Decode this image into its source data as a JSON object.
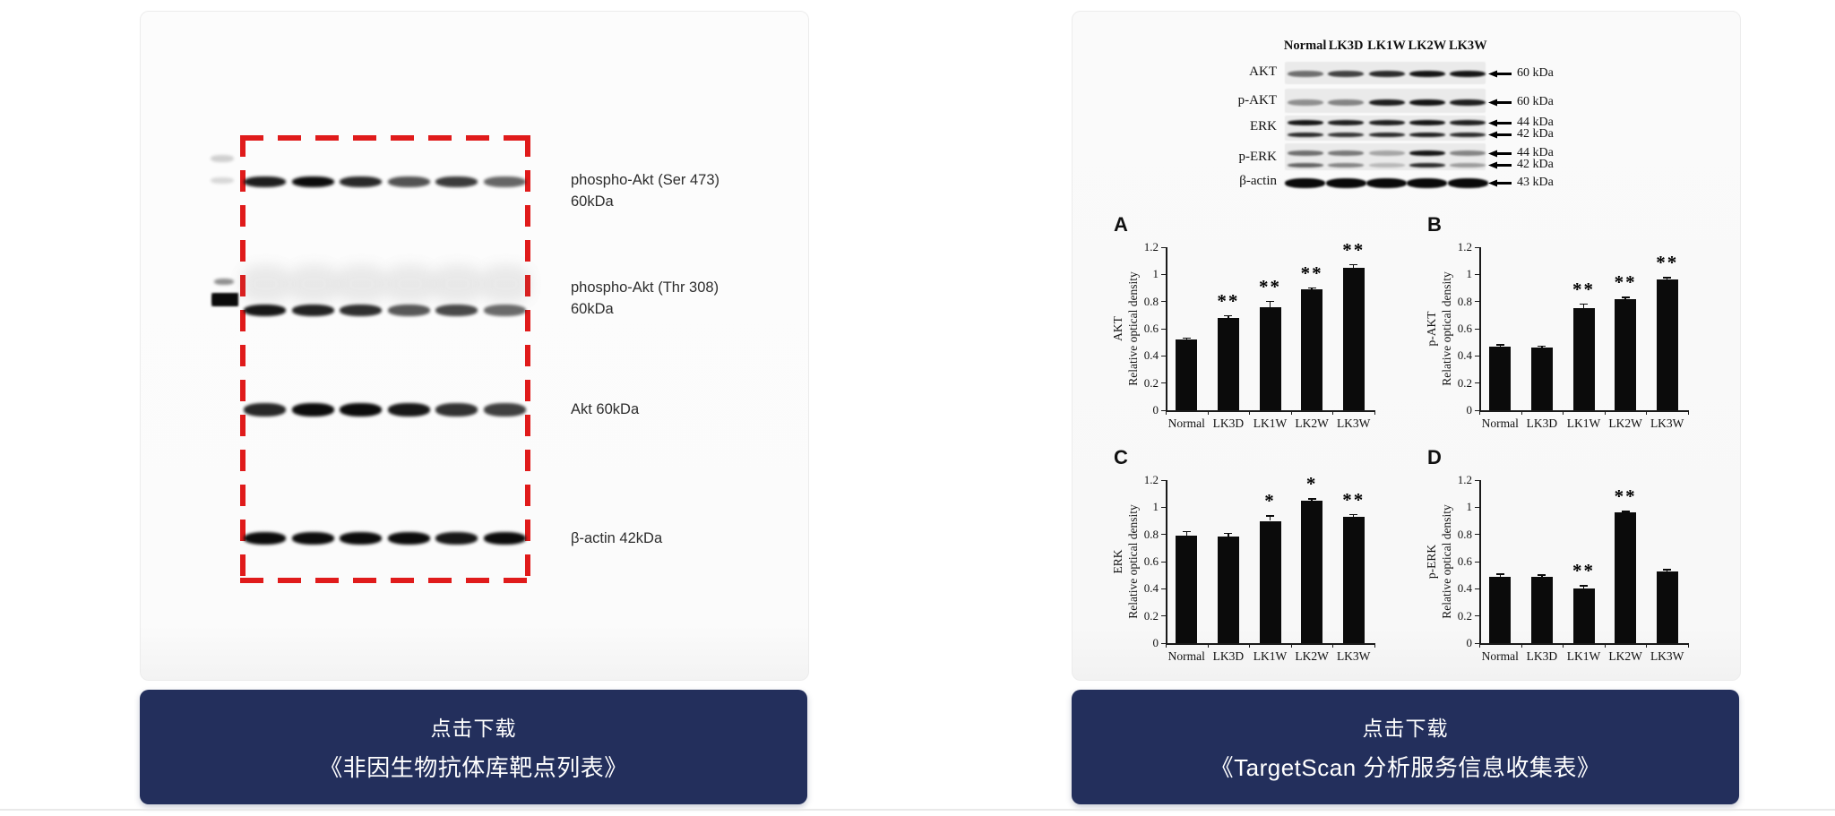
{
  "accent": {
    "button_bg": "#232f5c",
    "highlight_red": "#e01b1b"
  },
  "left_card": {
    "band_labels": [
      {
        "line1": "phospho-Akt (Ser 473)",
        "line2": "60kDa"
      },
      {
        "line1": "phospho-Akt (Thr 308)",
        "line2": "60kDa"
      },
      {
        "line1": "Akt 60kDa",
        "line2": ""
      },
      {
        "line1": "β-actin 42kDa",
        "line2": ""
      }
    ],
    "lane_count": 6,
    "band_rows": [
      {
        "intensities": [
          0.92,
          1,
          0.88,
          0.7,
          0.8,
          0.62
        ]
      },
      {
        "intensities": [
          0.95,
          0.9,
          0.85,
          0.68,
          0.74,
          0.6
        ]
      },
      {
        "intensities": [
          0.88,
          1,
          1,
          0.95,
          0.84,
          0.78
        ]
      },
      {
        "intensities": [
          1,
          1,
          1,
          1,
          0.95,
          1
        ]
      }
    ]
  },
  "left_button": {
    "line1": "点击下载",
    "line2": "《非因生物抗体库靶点列表》"
  },
  "right_card": {
    "blot": {
      "lane_headers": [
        "Normal",
        "LK3D",
        "LK1W",
        "LK2W",
        "LK3W"
      ],
      "rows": [
        {
          "label": "AKT",
          "kda_labels": [
            "60 kDa"
          ],
          "bands": [
            [
              0.55,
              0.75,
              0.85,
              0.95,
              0.95
            ]
          ]
        },
        {
          "label": "p-AKT",
          "kda_labels": [
            "60 kDa"
          ],
          "bands": [
            [
              0.4,
              0.45,
              0.9,
              0.95,
              0.9
            ]
          ]
        },
        {
          "label": "ERK",
          "kda_labels": [
            "44 kDa",
            "42 kDa"
          ],
          "bands": [
            [
              0.95,
              0.9,
              0.9,
              0.95,
              0.9
            ],
            [
              0.85,
              0.8,
              0.85,
              0.9,
              0.85
            ]
          ]
        },
        {
          "label": "p-ERK",
          "kda_labels": [
            "44 kDa",
            "42 kDa"
          ],
          "bands": [
            [
              0.55,
              0.5,
              0.3,
              0.95,
              0.45
            ],
            [
              0.6,
              0.45,
              0.22,
              0.85,
              0.35
            ]
          ]
        },
        {
          "label": "β-actin",
          "kda_labels": [
            "43 kDa"
          ],
          "bands": [
            [
              1,
              1,
              1,
              1,
              1
            ]
          ]
        }
      ]
    }
  },
  "right_button": {
    "line1": "点击下载",
    "line2": "《TargetScan 分析服务信息收集表》"
  },
  "chart_data": [
    {
      "type": "bar",
      "panel_label": "A",
      "ylabel_line1": "AKT",
      "ylabel_line2": "Relative optical density",
      "categories": [
        "Normal",
        "LK3D",
        "LK1W",
        "LK2W",
        "LK3W"
      ],
      "values": [
        0.52,
        0.68,
        0.76,
        0.89,
        1.05
      ],
      "errors": [
        0.01,
        0.015,
        0.04,
        0.01,
        0.02
      ],
      "significance": [
        "",
        "**",
        "**",
        "**",
        "**"
      ],
      "ylim": [
        0,
        1.2
      ],
      "yticks": [
        "0",
        "0.2",
        "0.4",
        "0.6",
        "0.8",
        "1",
        "1.2"
      ]
    },
    {
      "type": "bar",
      "panel_label": "B",
      "ylabel_line1": "p-AKT",
      "ylabel_line2": "Relative optical density",
      "categories": [
        "Normal",
        "LK3D",
        "LK1W",
        "LK2W",
        "LK3W"
      ],
      "values": [
        0.47,
        0.46,
        0.75,
        0.82,
        0.96
      ],
      "errors": [
        0.01,
        0.01,
        0.03,
        0.008,
        0.015
      ],
      "significance": [
        "",
        "",
        "**",
        "**",
        "**"
      ],
      "ylim": [
        0,
        1.2
      ],
      "yticks": [
        "0",
        "0.2",
        "0.4",
        "0.6",
        "0.8",
        "1",
        "1.2"
      ]
    },
    {
      "type": "bar",
      "panel_label": "C",
      "ylabel_line1": "ERK",
      "ylabel_line2": "Relative optical density",
      "categories": [
        "Normal",
        "LK3D",
        "LK1W",
        "LK2W",
        "LK3W"
      ],
      "values": [
        0.79,
        0.785,
        0.9,
        1.05,
        0.93
      ],
      "errors": [
        0.03,
        0.02,
        0.035,
        0.01,
        0.015
      ],
      "significance": [
        "",
        "",
        "*",
        "*",
        "**"
      ],
      "ylim": [
        0,
        1.2
      ],
      "yticks": [
        "0",
        "0.2",
        "0.4",
        "0.6",
        "0.8",
        "1",
        "1.2"
      ]
    },
    {
      "type": "bar",
      "panel_label": "D",
      "ylabel_line1": "p-ERK",
      "ylabel_line2": "Relative optical density",
      "categories": [
        "Normal",
        "LK3D",
        "LK1W",
        "LK2W",
        "LK3W"
      ],
      "values": [
        0.49,
        0.485,
        0.4,
        0.96,
        0.53
      ],
      "errors": [
        0.015,
        0.015,
        0.02,
        0.008,
        0.01
      ],
      "significance": [
        "",
        "",
        "**",
        "**",
        ""
      ],
      "ylim": [
        0,
        1.2
      ],
      "yticks": [
        "0",
        "0.2",
        "0.4",
        "0.6",
        "0.8",
        "1",
        "1.2"
      ]
    }
  ]
}
